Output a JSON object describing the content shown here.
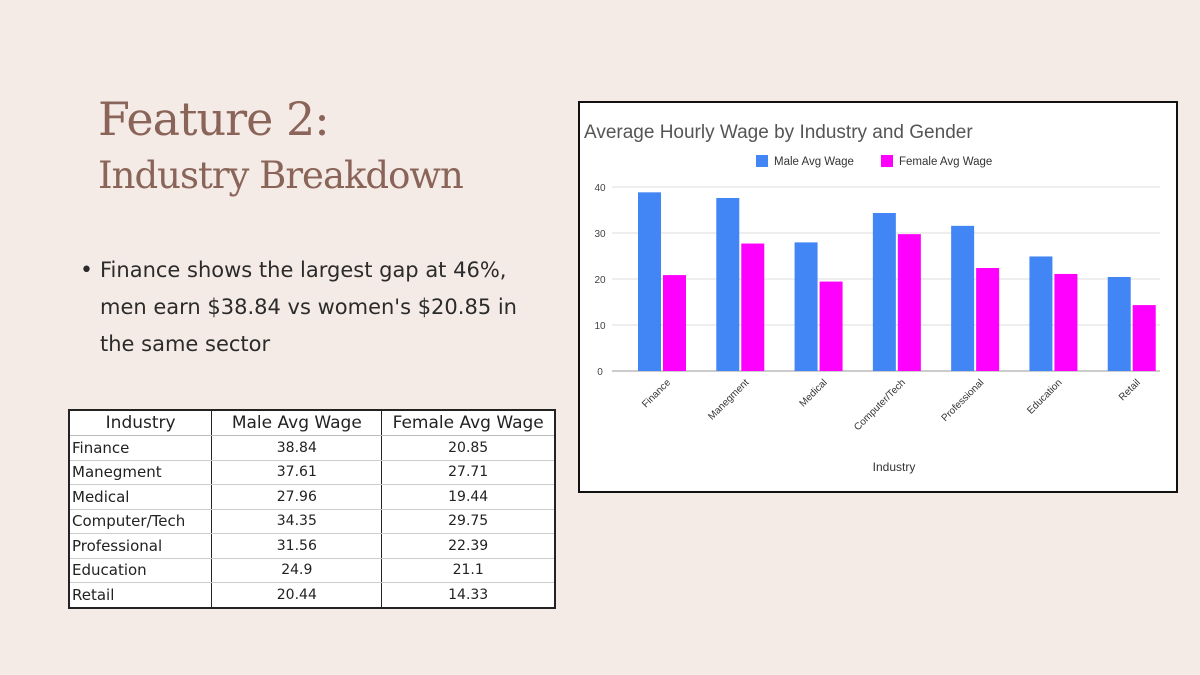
{
  "slide": {
    "title": "Feature 2:",
    "subtitle": "Industry Breakdown",
    "bullet": "Finance shows the largest gap at 46%, men earn $38.84 vs women's $20.85 in the same sector"
  },
  "table": {
    "headers": [
      "Industry",
      "Male Avg Wage",
      "Female Avg Wage"
    ],
    "rows": [
      [
        "Finance",
        "38.84",
        "20.85"
      ],
      [
        "Manegment",
        "37.61",
        "27.71"
      ],
      [
        "Medical",
        "27.96",
        "19.44"
      ],
      [
        "Computer/Tech",
        "34.35",
        "29.75"
      ],
      [
        "Professional",
        "31.56",
        "22.39"
      ],
      [
        "Education",
        "24.9",
        "21.1"
      ],
      [
        "Retail",
        "20.44",
        "14.33"
      ]
    ]
  },
  "chart_data": {
    "type": "bar",
    "title": "Average Hourly Wage by Industry and Gender",
    "xlabel": "Industry",
    "ylabel": "",
    "categories": [
      "Finance",
      "Manegment",
      "Medical",
      "Computer/Tech",
      "Professional",
      "Education",
      "Retail"
    ],
    "series": [
      {
        "name": "Male Avg Wage",
        "color": "#4285f4",
        "values": [
          38.84,
          37.61,
          27.96,
          34.35,
          31.56,
          24.9,
          20.44
        ]
      },
      {
        "name": "Female Avg Wage",
        "color": "#ff00ff",
        "values": [
          20.85,
          27.71,
          19.44,
          29.75,
          22.39,
          21.1,
          14.33
        ]
      }
    ],
    "ylim": [
      0,
      40
    ],
    "yticks": [
      0,
      10,
      20,
      30,
      40
    ],
    "grid": true,
    "legend": "top-center"
  }
}
